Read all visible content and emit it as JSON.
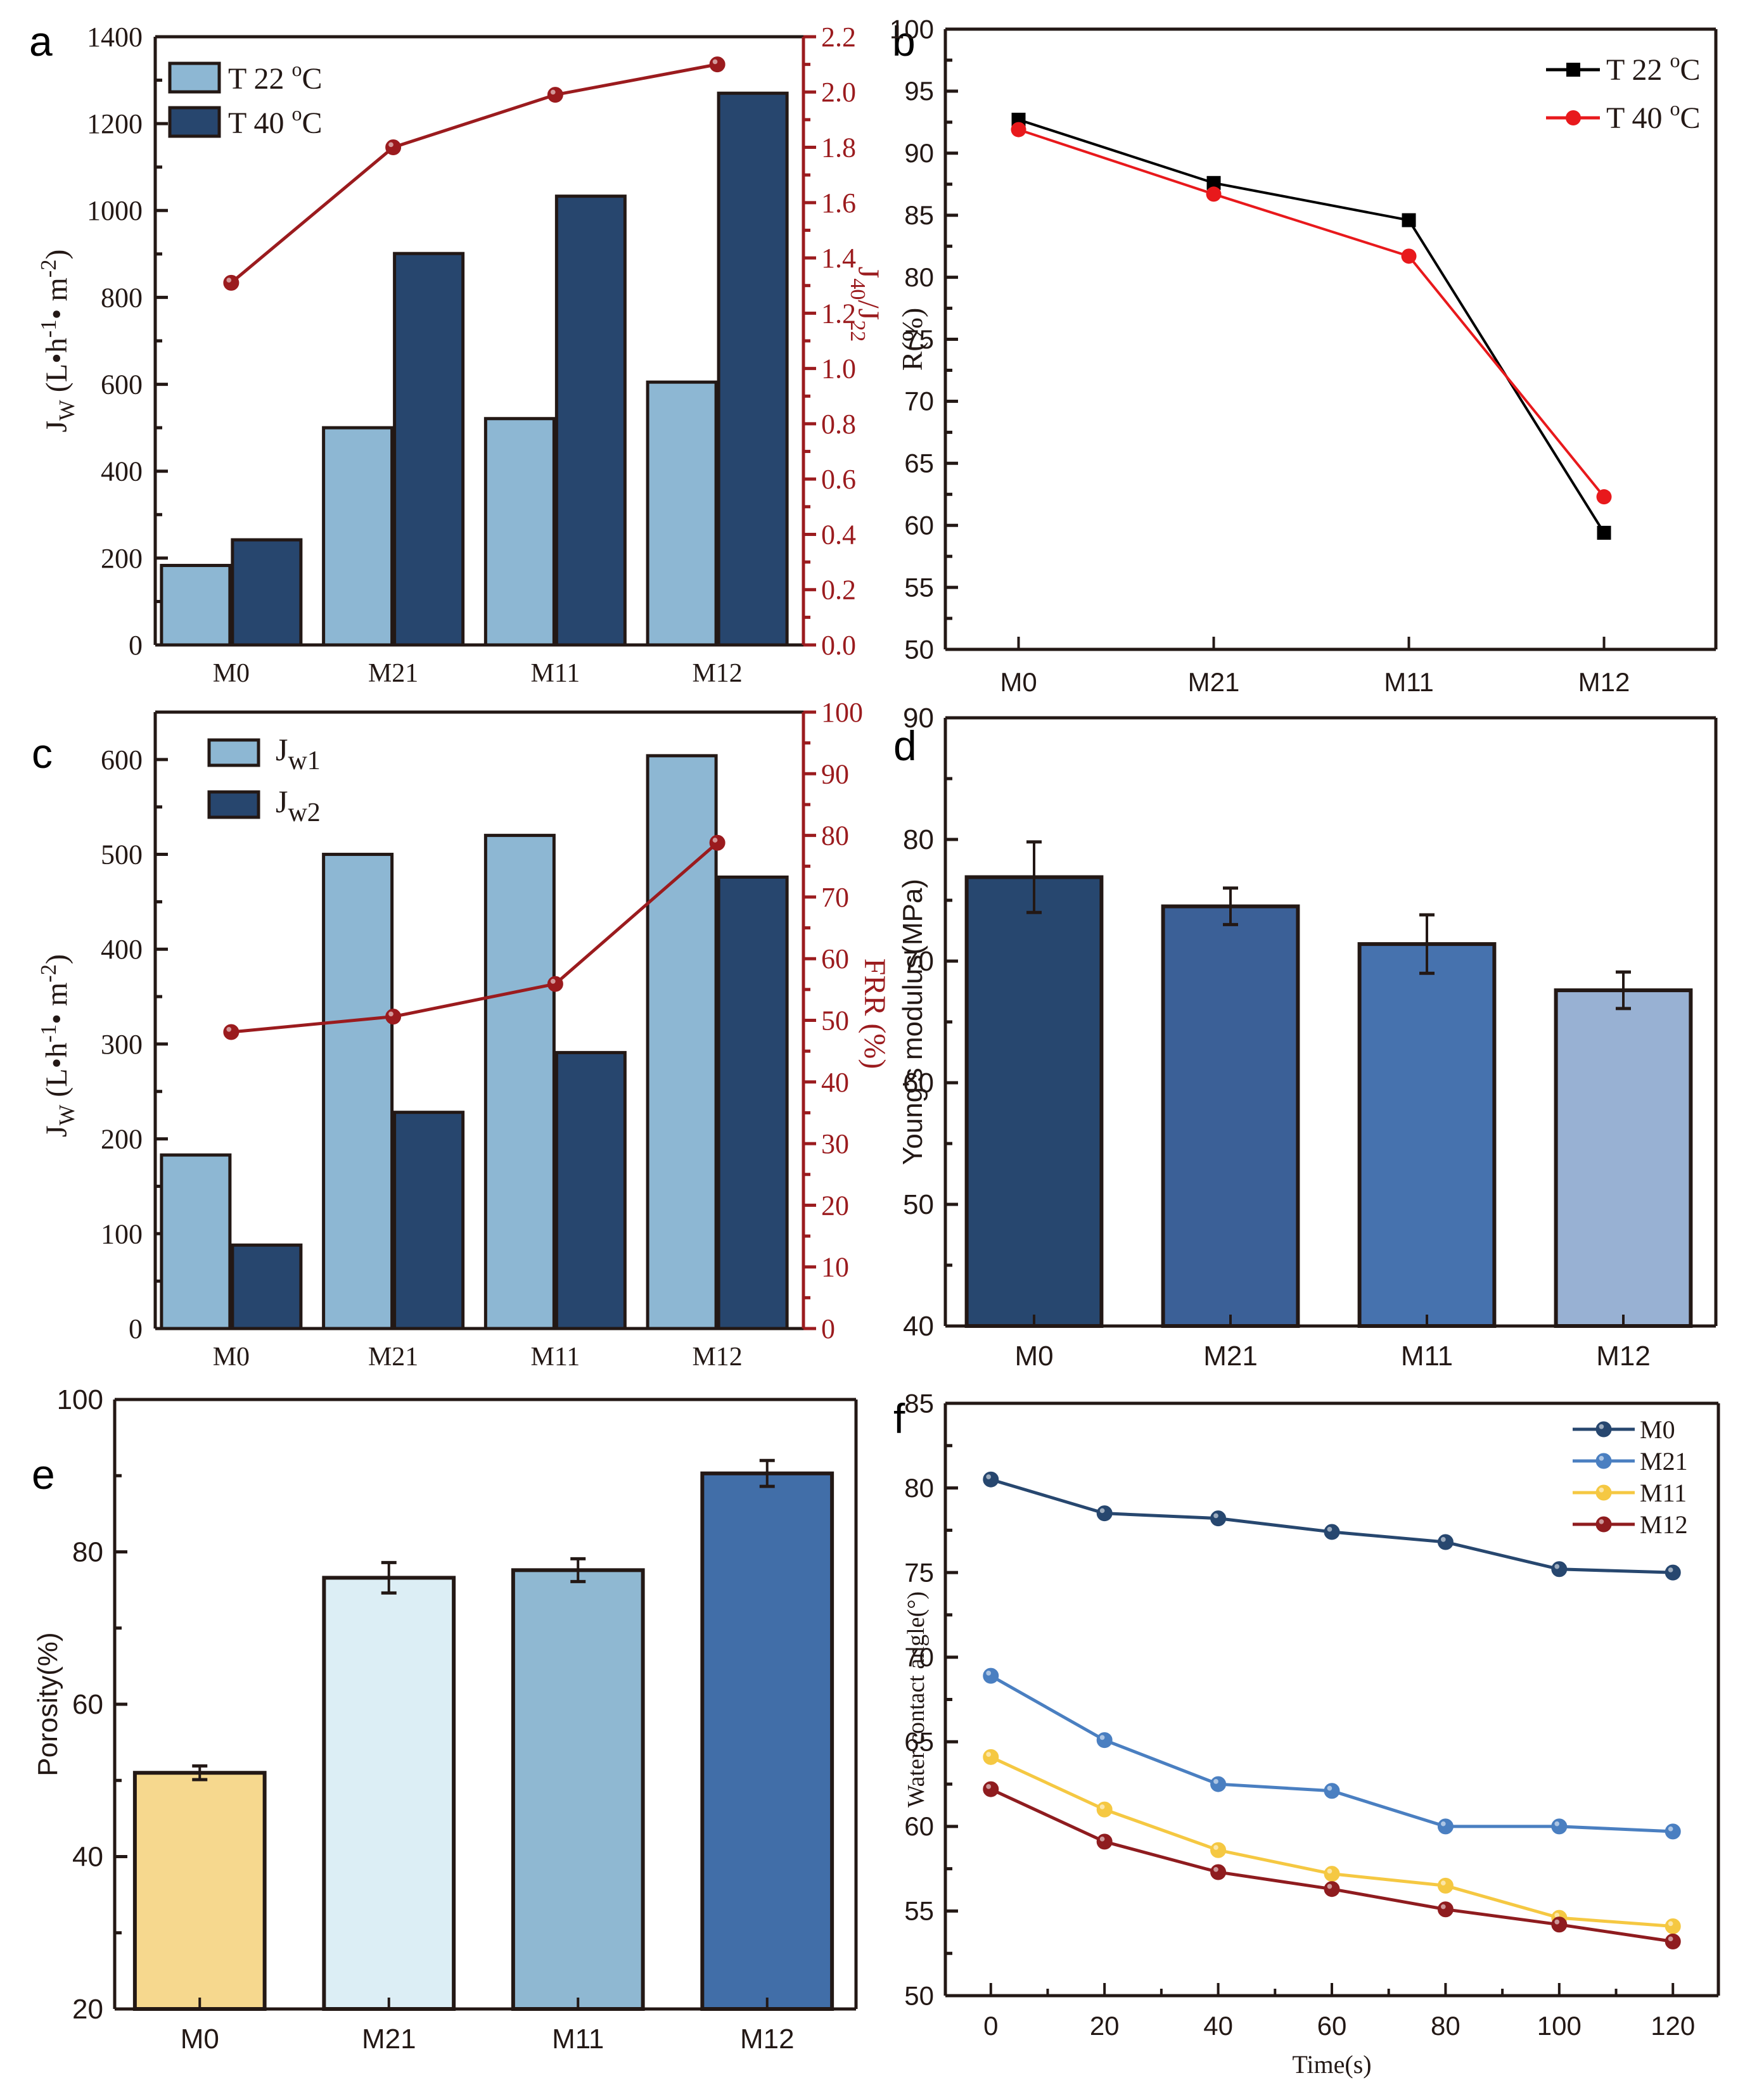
{
  "figure": {
    "panel_letters": [
      "a",
      "b",
      "c",
      "d",
      "e",
      "f"
    ]
  },
  "chart_data": [
    {
      "id": "a",
      "type": "bar",
      "title": "",
      "categories": [
        "M0",
        "M21",
        "M11",
        "M12"
      ],
      "xlabel": "",
      "ylabel": "Jw (L•h-1• m-2)",
      "ylabel_parts": {
        "main": "J",
        "sub": "W",
        "rest": " (L•h",
        "sup1": "-1",
        "mid": "• m",
        "sup2": "-2",
        "end": ")"
      },
      "ylim": [
        0,
        1400
      ],
      "yticks": [
        0,
        200,
        400,
        600,
        800,
        1000,
        1200,
        1400
      ],
      "series": [
        {
          "name": "T 22 °C",
          "legend_text": "T 22 ",
          "legend_sup": "o",
          "legend_unit": "C",
          "color": "#8db7d3",
          "values": [
            183,
            500,
            521,
            605
          ]
        },
        {
          "name": "T 40 °C",
          "legend_text": "T 40 ",
          "legend_sup": "o",
          "legend_unit": "C",
          "color": "#27466e",
          "values": [
            242,
            901,
            1033,
            1270
          ]
        }
      ],
      "secondary": {
        "name": "J40/J22",
        "ylabel_parts": {
          "main": "J",
          "sub1": "40",
          "slash": "/J",
          "sub2": "22"
        },
        "ylim": [
          0,
          2.2
        ],
        "yticks": [
          "0.0",
          "0.2",
          "0.4",
          "0.6",
          "0.8",
          "1.0",
          "1.2",
          "1.4",
          "1.6",
          "1.8",
          "2.0",
          "2.2"
        ],
        "color": "#9b1b1e",
        "values": [
          1.31,
          1.8,
          1.99,
          2.1
        ]
      },
      "legend_position": "top-left",
      "grid": false
    },
    {
      "id": "b",
      "type": "line",
      "title": "",
      "categories": [
        "M0",
        "M21",
        "M11",
        "M12"
      ],
      "xlabel": "",
      "ylabel": "R(%)",
      "ylim": [
        50,
        100
      ],
      "yticks": [
        50,
        55,
        60,
        65,
        70,
        75,
        80,
        85,
        90,
        95,
        100
      ],
      "series": [
        {
          "name": "T 22 °C",
          "legend_text": "T 22 ",
          "legend_sup": "o",
          "legend_unit": "C",
          "color": "#000000",
          "marker": "square",
          "values": [
            92.7,
            87.6,
            84.6,
            59.4
          ]
        },
        {
          "name": "T 40 °C",
          "legend_text": "T 40 ",
          "legend_sup": "o",
          "legend_unit": "C",
          "color": "#e8191c",
          "marker": "circle",
          "values": [
            91.9,
            86.7,
            81.7,
            62.3
          ]
        }
      ],
      "legend_position": "top-right",
      "grid": false
    },
    {
      "id": "c",
      "type": "bar",
      "title": "",
      "categories": [
        "M0",
        "M21",
        "M11",
        "M12"
      ],
      "xlabel": "",
      "ylabel": "Jw (L•h-1• m-2)",
      "ylabel_parts": {
        "main": "J",
        "sub": "W",
        "rest": " (L•h",
        "sup1": "-1",
        "mid": "• m",
        "sup2": "-2",
        "end": ")"
      },
      "ylim": [
        0,
        650
      ],
      "yticks": [
        0,
        100,
        200,
        300,
        400,
        500,
        600
      ],
      "series": [
        {
          "name": "Jw1",
          "legend_main": "J",
          "legend_sub": "w1",
          "color": "#8db7d3",
          "values": [
            183,
            500,
            520,
            604
          ]
        },
        {
          "name": "Jw2",
          "legend_main": "J",
          "legend_sub": "w2",
          "color": "#27466e",
          "values": [
            88,
            228,
            291,
            476
          ]
        }
      ],
      "secondary": {
        "name": "FRR (%)",
        "ylabel": "FRR (%)",
        "ylim": [
          0,
          100
        ],
        "yticks": [
          "0",
          "10",
          "20",
          "30",
          "40",
          "50",
          "60",
          "70",
          "80",
          "90",
          "100"
        ],
        "color": "#9b1b1e",
        "values": [
          48.1,
          50.6,
          55.9,
          78.8
        ]
      },
      "legend_position": "top-left",
      "grid": false
    },
    {
      "id": "d",
      "type": "bar",
      "title": "",
      "categories": [
        "M0",
        "M21",
        "M11",
        "M12"
      ],
      "xlabel": "",
      "ylabel": "Young's modulus(MPa)",
      "ylim": [
        40,
        90
      ],
      "yticks": [
        40,
        50,
        60,
        70,
        80,
        90
      ],
      "values": [
        76.9,
        74.5,
        71.4,
        67.6
      ],
      "errors": [
        2.9,
        1.5,
        2.4,
        1.5
      ],
      "colors": [
        "#27476f",
        "#3b6097",
        "#4672ae",
        "#98b1d3"
      ],
      "grid": false
    },
    {
      "id": "e",
      "type": "bar",
      "title": "",
      "categories": [
        "M0",
        "M21",
        "M11",
        "M12"
      ],
      "xlabel": "",
      "ylabel": "Porosity(%)",
      "ylim": [
        20,
        100
      ],
      "yticks": [
        20,
        40,
        60,
        80,
        100
      ],
      "values": [
        51.0,
        76.6,
        77.6,
        90.3
      ],
      "errors": [
        0.9,
        2.0,
        1.5,
        1.7
      ],
      "colors": [
        "#f6d88e",
        "#dceef5",
        "#8fb8d2",
        "#416ea8"
      ],
      "grid": false
    },
    {
      "id": "f",
      "type": "line",
      "title": "",
      "x": [
        0,
        20,
        40,
        60,
        80,
        100,
        120
      ],
      "xlabel": "Time(s)",
      "ylabel": "Water contact angle(°)",
      "xlim": [
        -8,
        128
      ],
      "ylim": [
        50,
        85
      ],
      "xticks": [
        0,
        20,
        40,
        60,
        80,
        100,
        120
      ],
      "yticks": [
        50,
        55,
        60,
        65,
        70,
        75,
        80,
        85
      ],
      "series": [
        {
          "name": "M0",
          "color": "#27476f",
          "values": [
            80.5,
            78.5,
            78.2,
            77.4,
            76.8,
            75.2,
            75.0
          ]
        },
        {
          "name": "M21",
          "color": "#4a7fc1",
          "values": [
            68.9,
            65.1,
            62.5,
            62.1,
            60.0,
            60.0,
            59.7
          ]
        },
        {
          "name": "M11",
          "color": "#f5c842",
          "values": [
            64.1,
            61.0,
            58.6,
            57.2,
            56.5,
            54.6,
            54.1
          ]
        },
        {
          "name": "M12",
          "color": "#8f1c1f",
          "values": [
            62.2,
            59.1,
            57.3,
            56.3,
            55.1,
            54.2,
            53.2
          ]
        }
      ],
      "legend_position": "top-right",
      "grid": false
    }
  ]
}
